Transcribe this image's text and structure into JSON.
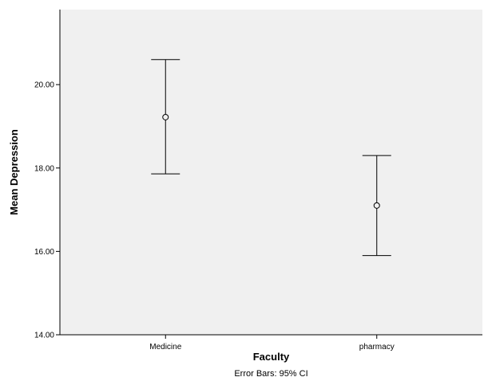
{
  "chart_data": {
    "type": "errorbar",
    "categories": [
      "Medicine",
      "pharmacy"
    ],
    "series": [
      {
        "mean": [
          19.22,
          17.1
        ],
        "ci_lower": [
          17.86,
          15.9
        ],
        "ci_upper": [
          20.6,
          18.3
        ]
      }
    ],
    "xlabel": "Faculty",
    "ylabel": "Mean Depression",
    "ylim": [
      14,
      21.8
    ],
    "yticks": [
      14,
      16,
      18,
      20
    ],
    "ytick_labels": [
      "14.00",
      "16.00",
      "18.00",
      "20.00"
    ],
    "footnote": "Error Bars: 95% CI",
    "grid": false,
    "marker": "open-circle",
    "plot_background": "#f0f0f0",
    "line_color": "#000000"
  }
}
